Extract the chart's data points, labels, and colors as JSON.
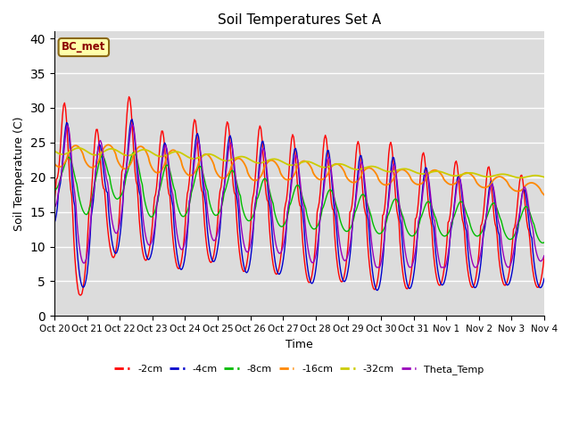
{
  "title": "Soil Temperatures Set A",
  "xlabel": "Time",
  "ylabel": "Soil Temperature (C)",
  "ylim": [
    0,
    41
  ],
  "yticks": [
    0,
    5,
    10,
    15,
    20,
    25,
    30,
    35,
    40
  ],
  "background_color": "#dcdcdc",
  "annotation_text": "BC_met",
  "series_colors": {
    "-2cm": "#ff0000",
    "-4cm": "#0000cc",
    "-8cm": "#00bb00",
    "-16cm": "#ff8800",
    "-32cm": "#cccc00",
    "Theta_Temp": "#9900bb"
  },
  "x_tick_labels": [
    "Oct 20",
    "Oct 21",
    "Oct 22",
    "Oct 23",
    "Oct 24",
    "Oct 25",
    "Oct 26",
    "Oct 27",
    "Oct 28",
    "Oct 29",
    "Oct 30",
    "Oct 31",
    "Nov 1",
    "Nov 2",
    "Nov 3",
    "Nov 4"
  ],
  "num_points": 480
}
